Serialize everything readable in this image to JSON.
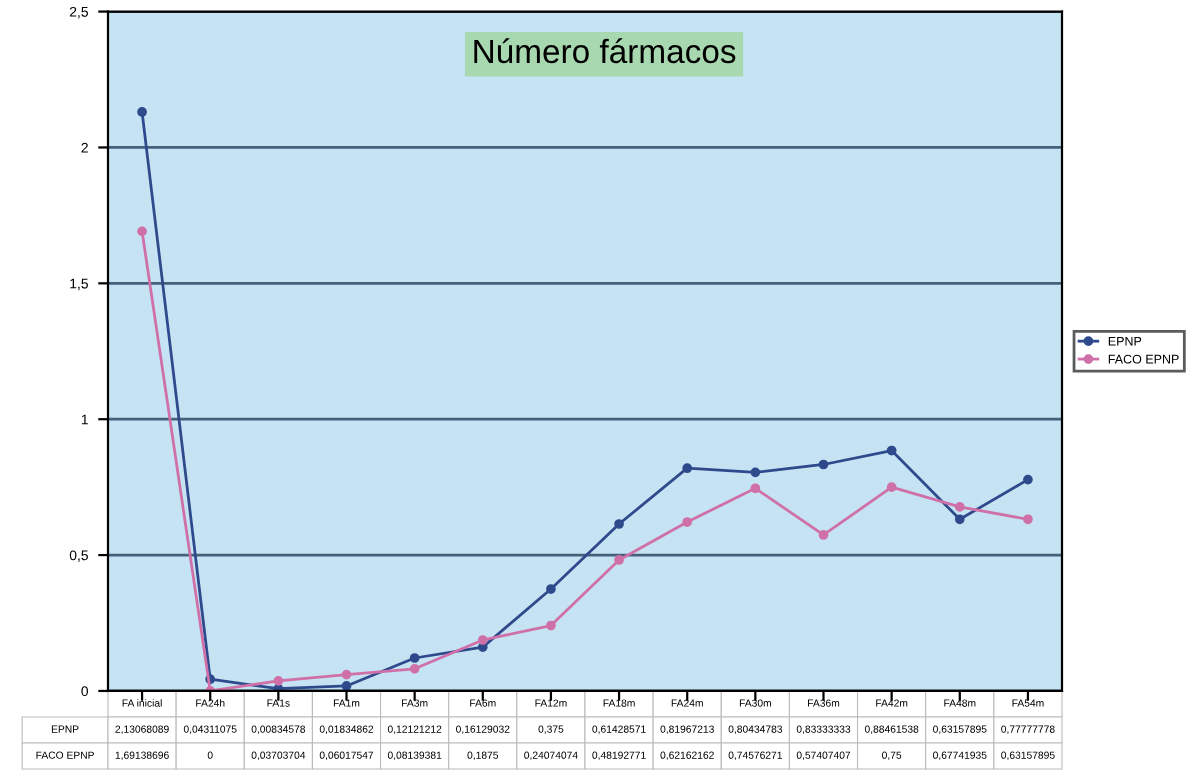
{
  "chart_data": {
    "type": "line",
    "title": "Número fármacos",
    "categories": [
      "FA inicial",
      "FA24h",
      "FA1s",
      "FA1m",
      "FA3m",
      "FA6m",
      "FA12m",
      "FA18m",
      "FA24m",
      "FA30m",
      "FA36m",
      "FA42m",
      "FA48m",
      "FA54m"
    ],
    "series": [
      {
        "name": "EPNP",
        "color": "#2e4a8c",
        "values": [
          2.13068089,
          0.04311075,
          0.00834578,
          0.01834862,
          0.12121212,
          0.16129032,
          0.375,
          0.61428571,
          0.81967213,
          0.80434783,
          0.83333333,
          0.88461538,
          0.63157895,
          0.77777778
        ],
        "value_labels": [
          "2,13068089",
          "0,04311075",
          "0,00834578",
          "0,01834862",
          "0,12121212",
          "0,16129032",
          "0,375",
          "0,61428571",
          "0,81967213",
          "0,80434783",
          "0,83333333",
          "0,88461538",
          "0,63157895",
          "0,77777778"
        ]
      },
      {
        "name": "FACO EPNP",
        "color": "#d070a8",
        "values": [
          1.69138696,
          0,
          0.03703704,
          0.06017547,
          0.08139381,
          0.1875,
          0.24074074,
          0.48192771,
          0.62162162,
          0.74576271,
          0.57407407,
          0.75,
          0.67741935,
          0.63157895
        ],
        "value_labels": [
          "1,69138696",
          "0",
          "0,03703704",
          "0,06017547",
          "0,08139381",
          "0,1875",
          "0,24074074",
          "0,48192771",
          "0,62162162",
          "0,74576271",
          "0,57407407",
          "0,75",
          "0,67741935",
          "0,63157895"
        ]
      }
    ],
    "ylim": [
      0,
      2.5
    ],
    "yticks": [
      0,
      {
        "value": 0.5,
        "label": "0,5"
      },
      1,
      {
        "value": 1.5,
        "label": "1,5"
      },
      2,
      {
        "value": 2.5,
        "label": "2,5"
      }
    ],
    "grid": "y",
    "legend": "right",
    "marker": "circle",
    "line_style": "solid",
    "tick_labels": "y"
  }
}
